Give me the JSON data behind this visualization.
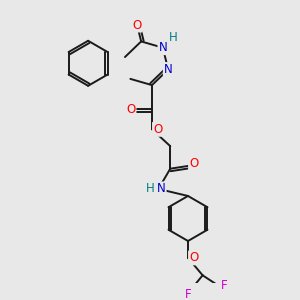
{
  "bg_color": "#e8e8e8",
  "bond_color": "#1a1a1a",
  "atom_colors": {
    "O": "#ff0000",
    "N": "#0000cc",
    "F": "#cc00cc",
    "H": "#008080",
    "C": "#1a1a1a"
  },
  "line_width": 1.4,
  "font_size": 8.5
}
